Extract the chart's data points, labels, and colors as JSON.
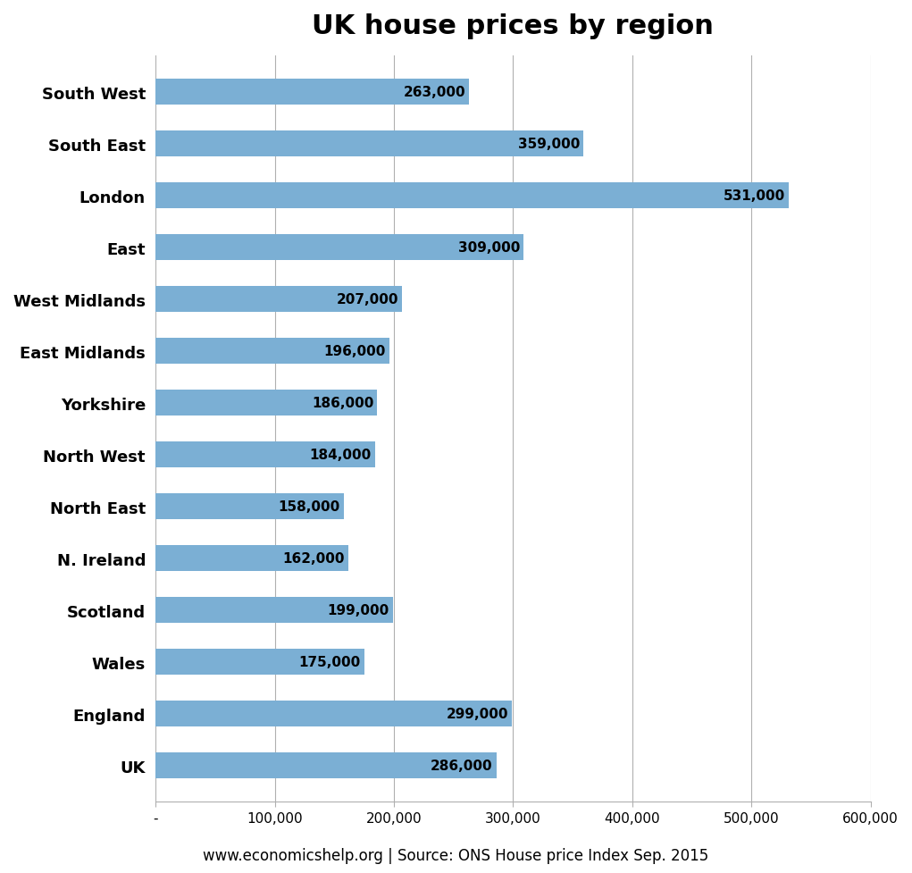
{
  "title": "UK house prices by region",
  "regions": [
    "South West",
    "South East",
    "London",
    "East",
    "West Midlands",
    "East Midlands",
    "Yorkshire",
    "North West",
    "North East",
    "N. Ireland",
    "Scotland",
    "Wales",
    "England",
    "UK"
  ],
  "values": [
    263000,
    359000,
    531000,
    309000,
    207000,
    196000,
    186000,
    184000,
    158000,
    162000,
    199000,
    175000,
    299000,
    286000
  ],
  "bar_color": "#7BAFD4",
  "xlim": [
    0,
    600000
  ],
  "xticks": [
    0,
    100000,
    200000,
    300000,
    400000,
    500000,
    600000
  ],
  "xlabel_bottom": "www.economicshelp.org | Source: ONS House price Index Sep. 2015",
  "background_color": "#ffffff",
  "title_fontsize": 22,
  "label_fontsize": 13,
  "value_fontsize": 11,
  "source_fontsize": 12,
  "bar_height": 0.5
}
